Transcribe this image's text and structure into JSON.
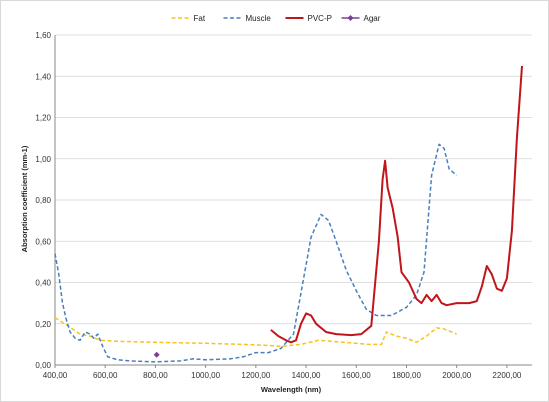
{
  "chart_data": {
    "type": "line",
    "title": "",
    "xlabel": "Wavelength (nm)",
    "ylabel": "Absorption coefficient (mm-1)",
    "xlim": [
      400,
      2300
    ],
    "ylim": [
      0,
      1.6
    ],
    "x_ticks": [
      400,
      600,
      800,
      1000,
      1200,
      1400,
      1600,
      1800,
      2000,
      2200
    ],
    "x_tick_labels": [
      "400,00",
      "600,00",
      "800,00",
      "1000,00",
      "1200,00",
      "1400,00",
      "1600,00",
      "1800,00",
      "2000,00",
      "2200,00"
    ],
    "y_ticks": [
      0,
      0.2,
      0.4,
      0.6,
      0.8,
      1.0,
      1.2,
      1.4,
      1.6
    ],
    "y_tick_labels": [
      "0,00",
      "0,20",
      "0,40",
      "0,60",
      "0,80",
      "1,00",
      "1,20",
      "1,40",
      "1,60"
    ],
    "grid": "horizontal",
    "legend": "top",
    "series": [
      {
        "name": "Fat",
        "color": "#f5c518",
        "style": "dashed",
        "points": [
          [
            400,
            0.23
          ],
          [
            450,
            0.19
          ],
          [
            500,
            0.15
          ],
          [
            540,
            0.14
          ],
          [
            580,
            0.12
          ],
          [
            650,
            0.115
          ],
          [
            800,
            0.11
          ],
          [
            1000,
            0.105
          ],
          [
            1150,
            0.1
          ],
          [
            1250,
            0.095
          ],
          [
            1300,
            0.09
          ],
          [
            1380,
            0.1
          ],
          [
            1450,
            0.12
          ],
          [
            1550,
            0.11
          ],
          [
            1650,
            0.1
          ],
          [
            1700,
            0.1
          ],
          [
            1720,
            0.16
          ],
          [
            1760,
            0.14
          ],
          [
            1800,
            0.13
          ],
          [
            1840,
            0.11
          ],
          [
            1880,
            0.14
          ],
          [
            1920,
            0.18
          ],
          [
            1950,
            0.175
          ],
          [
            1980,
            0.16
          ],
          [
            2000,
            0.15
          ]
        ]
      },
      {
        "name": "Muscle",
        "color": "#4a7ebb",
        "style": "dashed",
        "points": [
          [
            400,
            0.54
          ],
          [
            415,
            0.44
          ],
          [
            430,
            0.3
          ],
          [
            445,
            0.22
          ],
          [
            460,
            0.16
          ],
          [
            480,
            0.13
          ],
          [
            500,
            0.12
          ],
          [
            520,
            0.16
          ],
          [
            540,
            0.15
          ],
          [
            555,
            0.13
          ],
          [
            570,
            0.15
          ],
          [
            590,
            0.09
          ],
          [
            610,
            0.04
          ],
          [
            650,
            0.025
          ],
          [
            700,
            0.02
          ],
          [
            800,
            0.015
          ],
          [
            900,
            0.02
          ],
          [
            950,
            0.03
          ],
          [
            1000,
            0.025
          ],
          [
            1100,
            0.03
          ],
          [
            1150,
            0.04
          ],
          [
            1200,
            0.06
          ],
          [
            1250,
            0.06
          ],
          [
            1300,
            0.08
          ],
          [
            1350,
            0.15
          ],
          [
            1380,
            0.35
          ],
          [
            1420,
            0.62
          ],
          [
            1460,
            0.73
          ],
          [
            1490,
            0.7
          ],
          [
            1520,
            0.6
          ],
          [
            1560,
            0.46
          ],
          [
            1600,
            0.36
          ],
          [
            1640,
            0.27
          ],
          [
            1680,
            0.24
          ],
          [
            1740,
            0.24
          ],
          [
            1800,
            0.28
          ],
          [
            1840,
            0.34
          ],
          [
            1870,
            0.45
          ],
          [
            1900,
            0.92
          ],
          [
            1930,
            1.07
          ],
          [
            1950,
            1.05
          ],
          [
            1970,
            0.95
          ],
          [
            2000,
            0.92
          ]
        ]
      },
      {
        "name": "PVC-P",
        "color": "#c0151b",
        "style": "solid",
        "points": [
          [
            1260,
            0.17
          ],
          [
            1290,
            0.14
          ],
          [
            1320,
            0.12
          ],
          [
            1340,
            0.11
          ],
          [
            1360,
            0.12
          ],
          [
            1380,
            0.2
          ],
          [
            1400,
            0.25
          ],
          [
            1420,
            0.24
          ],
          [
            1440,
            0.2
          ],
          [
            1480,
            0.16
          ],
          [
            1520,
            0.15
          ],
          [
            1580,
            0.145
          ],
          [
            1620,
            0.15
          ],
          [
            1660,
            0.19
          ],
          [
            1690,
            0.6
          ],
          [
            1705,
            0.9
          ],
          [
            1715,
            0.99
          ],
          [
            1725,
            0.86
          ],
          [
            1745,
            0.76
          ],
          [
            1765,
            0.62
          ],
          [
            1780,
            0.45
          ],
          [
            1810,
            0.4
          ],
          [
            1840,
            0.32
          ],
          [
            1860,
            0.3
          ],
          [
            1880,
            0.34
          ],
          [
            1900,
            0.31
          ],
          [
            1920,
            0.34
          ],
          [
            1940,
            0.3
          ],
          [
            1960,
            0.29
          ],
          [
            2000,
            0.3
          ],
          [
            2050,
            0.3
          ],
          [
            2080,
            0.31
          ],
          [
            2100,
            0.38
          ],
          [
            2120,
            0.48
          ],
          [
            2140,
            0.44
          ],
          [
            2160,
            0.37
          ],
          [
            2180,
            0.36
          ],
          [
            2200,
            0.42
          ],
          [
            2220,
            0.65
          ],
          [
            2240,
            1.1
          ],
          [
            2260,
            1.45
          ]
        ]
      },
      {
        "name": "Agar",
        "color": "#7b3f99",
        "style": "marker",
        "points": [
          [
            805,
            0.05
          ]
        ]
      }
    ]
  }
}
